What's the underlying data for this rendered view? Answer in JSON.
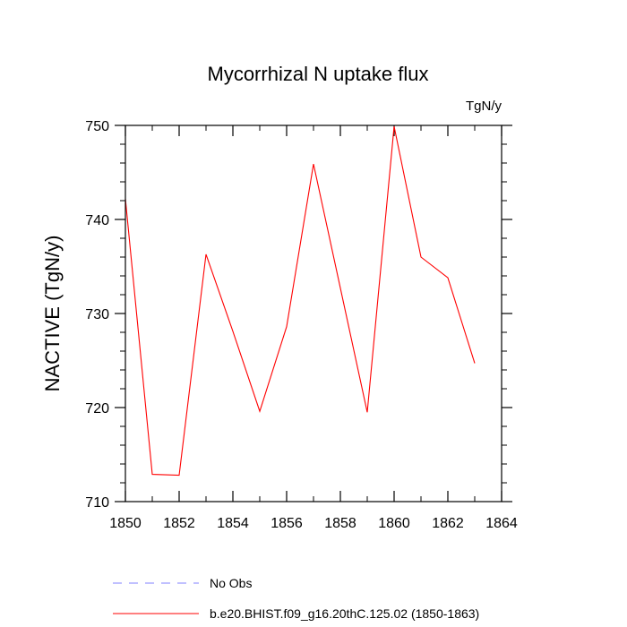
{
  "chart_data": {
    "type": "line",
    "title": "Mycorrhizal N uptake flux",
    "units": "TgN/y",
    "ylabel": "NACTIVE  (TgN/y)",
    "xlabel": "",
    "xlim": [
      1850,
      1864
    ],
    "ylim": [
      710,
      750
    ],
    "x_ticks": [
      1850,
      1852,
      1854,
      1856,
      1858,
      1860,
      1862,
      1864
    ],
    "y_ticks": [
      710,
      720,
      730,
      740,
      750
    ],
    "grid": false,
    "legend_position": "bottom",
    "series": [
      {
        "name": "No Obs",
        "color": "#8080ff",
        "style": "dashed",
        "x": [],
        "y": []
      },
      {
        "name": "b.e20.BHIST.f09_g16.20thC.125.02 (1850-1863)",
        "color": "#ff0000",
        "style": "solid",
        "x": [
          1850,
          1851,
          1852,
          1853,
          1854,
          1855,
          1856,
          1857,
          1858,
          1859,
          1860,
          1861,
          1862,
          1863
        ],
        "y": [
          742.2,
          712.9,
          712.8,
          736.3,
          728.1,
          719.6,
          728.6,
          745.9,
          732.7,
          719.5,
          749.9,
          736.0,
          733.8,
          724.7
        ]
      }
    ]
  }
}
